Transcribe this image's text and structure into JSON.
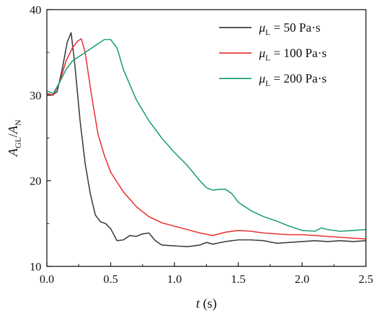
{
  "chart_data": {
    "type": "line",
    "xlabel": "t (s)",
    "ylabel": "A_GL/A_N",
    "xlim": [
      0.0,
      2.5
    ],
    "ylim": [
      10,
      40
    ],
    "x_ticks": [
      "0.0",
      "0.5",
      "1.0",
      "1.5",
      "2.0",
      "2.5"
    ],
    "y_ticks": [
      "10",
      "20",
      "30",
      "40"
    ],
    "legend_position": "top-right",
    "grid": false,
    "series": [
      {
        "name": "μL = 50 Pa·s",
        "name_parts": {
          "symbol": "μ",
          "sub": "L",
          "rest": " = 50 Pa·s"
        },
        "color": "#3a3a3a",
        "x": [
          0.0,
          0.04,
          0.08,
          0.12,
          0.16,
          0.19,
          0.22,
          0.26,
          0.3,
          0.34,
          0.38,
          0.42,
          0.46,
          0.5,
          0.55,
          0.6,
          0.65,
          0.7,
          0.75,
          0.8,
          0.85,
          0.9,
          1.0,
          1.1,
          1.2,
          1.25,
          1.3,
          1.4,
          1.5,
          1.6,
          1.7,
          1.8,
          1.9,
          2.0,
          2.1,
          2.2,
          2.3,
          2.4,
          2.5
        ],
        "y": [
          30.2,
          30.0,
          30.4,
          33.0,
          36.2,
          37.3,
          33.5,
          27.0,
          22.0,
          18.5,
          16.0,
          15.2,
          15.0,
          14.4,
          13.0,
          13.1,
          13.6,
          13.5,
          13.8,
          13.9,
          13.0,
          12.5,
          12.4,
          12.3,
          12.5,
          12.8,
          12.6,
          12.9,
          13.1,
          13.1,
          13.0,
          12.7,
          12.8,
          12.9,
          13.0,
          12.9,
          13.0,
          12.9,
          13.0
        ]
      },
      {
        "name": "μL = 100 Pa·s",
        "name_parts": {
          "symbol": "μ",
          "sub": "L",
          "rest": " = 100 Pa·s"
        },
        "color": "#e83232",
        "x": [
          0.0,
          0.05,
          0.1,
          0.15,
          0.2,
          0.24,
          0.27,
          0.3,
          0.35,
          0.4,
          0.45,
          0.5,
          0.6,
          0.7,
          0.8,
          0.9,
          1.0,
          1.1,
          1.2,
          1.3,
          1.4,
          1.5,
          1.6,
          1.7,
          1.8,
          1.9,
          2.0,
          2.1,
          2.2,
          2.3,
          2.4,
          2.5
        ],
        "y": [
          30.2,
          30.0,
          31.5,
          34.0,
          35.5,
          36.3,
          36.6,
          35.0,
          30.0,
          25.5,
          23.0,
          21.0,
          18.7,
          17.0,
          15.8,
          15.1,
          14.7,
          14.3,
          13.9,
          13.6,
          14.0,
          14.2,
          14.1,
          13.9,
          13.8,
          13.7,
          13.7,
          13.6,
          13.5,
          13.4,
          13.3,
          13.2
        ]
      },
      {
        "name": "μL = 200 Pa·s",
        "name_parts": {
          "symbol": "μ",
          "sub": "L",
          "rest": " = 200 Pa·s"
        },
        "color": "#1a9e76",
        "x": [
          0.0,
          0.05,
          0.1,
          0.15,
          0.2,
          0.3,
          0.4,
          0.45,
          0.5,
          0.55,
          0.6,
          0.7,
          0.8,
          0.9,
          1.0,
          1.1,
          1.2,
          1.25,
          1.3,
          1.35,
          1.4,
          1.45,
          1.5,
          1.6,
          1.7,
          1.8,
          1.9,
          2.0,
          2.1,
          2.15,
          2.2,
          2.3,
          2.4,
          2.5
        ],
        "y": [
          30.5,
          30.2,
          31.5,
          33.0,
          34.0,
          35.0,
          36.0,
          36.5,
          36.5,
          35.5,
          33.0,
          29.5,
          27.0,
          25.0,
          23.3,
          21.8,
          20.0,
          19.2,
          18.9,
          19.0,
          19.0,
          18.5,
          17.5,
          16.5,
          15.8,
          15.3,
          14.7,
          14.2,
          14.1,
          14.5,
          14.3,
          14.1,
          14.2,
          14.3
        ]
      }
    ]
  }
}
